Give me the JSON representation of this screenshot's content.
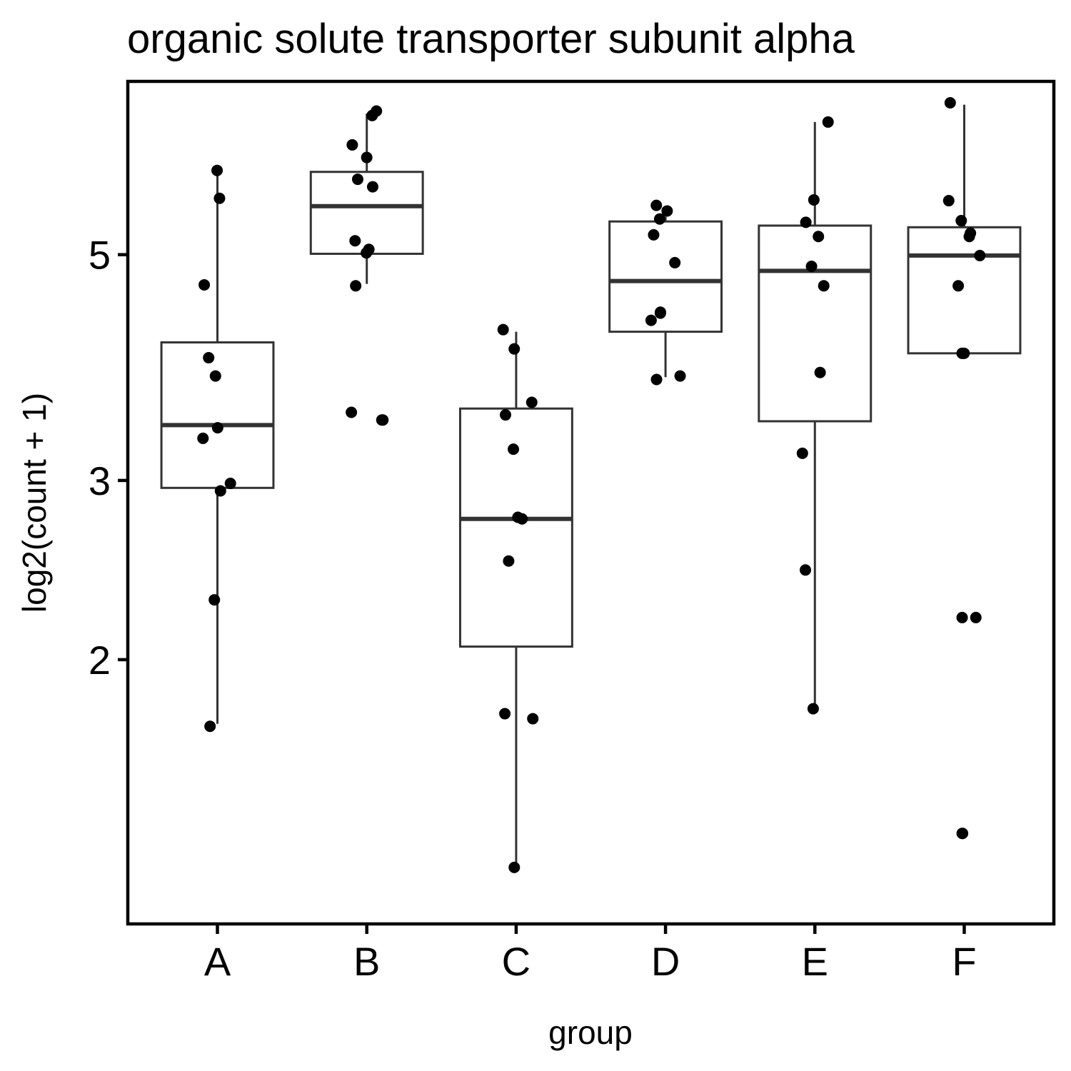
{
  "chart_data": {
    "type": "boxplot",
    "title": "organic solute transporter subunit alpha",
    "xlabel": "group",
    "ylabel": "log2(count + 1)",
    "y_scale": "log",
    "ylim": [
      1.1,
      7.4
    ],
    "y_ticks": [
      2,
      3,
      5
    ],
    "grid": false,
    "legend": "none",
    "colors": {
      "box_line": "#333333",
      "points": "#000000",
      "frame": "#000000"
    },
    "categories": [
      "A",
      "B",
      "C",
      "D",
      "E",
      "F"
    ],
    "boxes": [
      {
        "group": "A",
        "whisker_low": 1.73,
        "q1": 2.95,
        "median": 3.4,
        "q3": 4.1,
        "whisker_high": 6.05
      },
      {
        "group": "B",
        "whisker_low": 4.68,
        "q1": 5.01,
        "median": 5.58,
        "q3": 6.03,
        "whisker_high": 6.88
      },
      {
        "group": "C",
        "whisker_low": 1.26,
        "q1": 2.06,
        "median": 2.75,
        "q3": 3.53,
        "whisker_high": 4.2
      },
      {
        "group": "D",
        "whisker_low": 3.79,
        "q1": 4.2,
        "median": 4.71,
        "q3": 5.39,
        "whisker_high": 5.45
      },
      {
        "group": "E",
        "whisker_low": 1.8,
        "q1": 3.43,
        "median": 4.82,
        "q3": 5.34,
        "whisker_high": 6.75
      },
      {
        "group": "F",
        "whisker_low": 4.0,
        "q1": 4.0,
        "median": 4.99,
        "q3": 5.32,
        "whisker_high": 7.02
      }
    ],
    "points": [
      {
        "group": "A",
        "values": [
          6.05,
          5.68,
          4.67,
          3.96,
          3.8,
          3.38,
          3.3,
          2.98,
          2.93,
          2.29,
          1.72
        ]
      },
      {
        "group": "B",
        "values": [
          6.92,
          6.85,
          6.41,
          6.23,
          5.93,
          5.83,
          5.16,
          5.06,
          5.02,
          4.66,
          3.5,
          3.44,
          3.44
        ]
      },
      {
        "group": "C",
        "values": [
          4.22,
          4.04,
          3.58,
          3.48,
          3.22,
          2.76,
          2.75,
          2.5,
          1.77,
          1.75,
          1.25
        ]
      },
      {
        "group": "D",
        "values": [
          5.59,
          5.52,
          5.42,
          5.23,
          4.91,
          4.39,
          4.38,
          4.31,
          3.8,
          3.77
        ]
      },
      {
        "group": "E",
        "values": [
          6.75,
          5.66,
          5.38,
          5.21,
          4.87,
          4.66,
          3.83,
          3.19,
          2.45,
          1.79
        ]
      },
      {
        "group": "F",
        "values": [
          7.05,
          5.65,
          5.4,
          5.25,
          5.21,
          4.99,
          4.66,
          4.0,
          4.0,
          2.2,
          2.2,
          1.35,
          1.35
        ]
      }
    ]
  }
}
